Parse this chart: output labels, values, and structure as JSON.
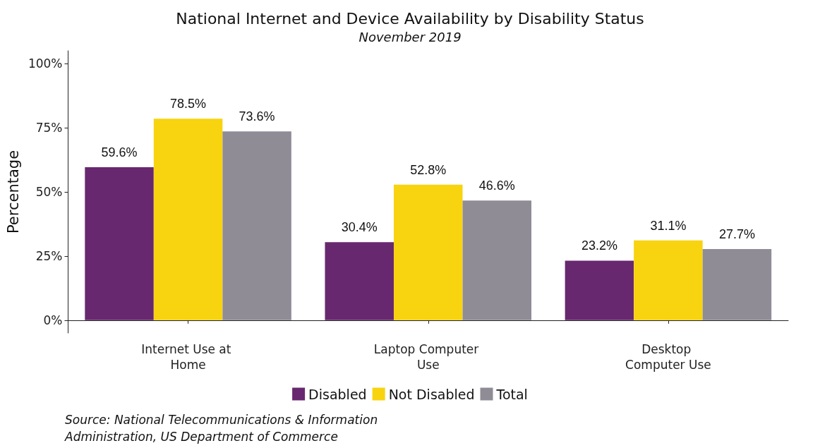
{
  "chart_data": {
    "type": "bar",
    "title": "National Internet and Device Availability by Disability Status",
    "subtitle": "November 2019",
    "ylabel": "Percentage",
    "categories": [
      "Internet Use at Home",
      "Laptop Computer Use",
      "Desktop Computer Use"
    ],
    "series": [
      {
        "name": "Disabled",
        "color": "#68286f",
        "values": [
          59.6,
          30.4,
          23.2
        ],
        "value_labels": [
          "59.6%",
          "30.4%",
          "23.2%"
        ]
      },
      {
        "name": "Not Disabled",
        "color": "#f8d30f",
        "values": [
          78.5,
          52.8,
          31.1
        ],
        "value_labels": [
          "78.5%",
          "52.8%",
          "31.1%"
        ]
      },
      {
        "name": "Total",
        "color": "#8f8c96",
        "values": [
          73.6,
          46.6,
          27.7
        ],
        "value_labels": [
          "73.6%",
          "46.6%",
          "27.7%"
        ]
      }
    ],
    "ylim": [
      -5,
      105
    ],
    "yticks": [
      {
        "value": 0,
        "label": "0%"
      },
      {
        "value": 25,
        "label": "25%"
      },
      {
        "value": 50,
        "label": "50%"
      },
      {
        "value": 75,
        "label": "75%"
      },
      {
        "value": 100,
        "label": "100%"
      }
    ],
    "grid": false,
    "legend": "bottom",
    "annotations": [
      "Source: National Telecommunications & Information Administration, US Department of Commerce"
    ]
  }
}
